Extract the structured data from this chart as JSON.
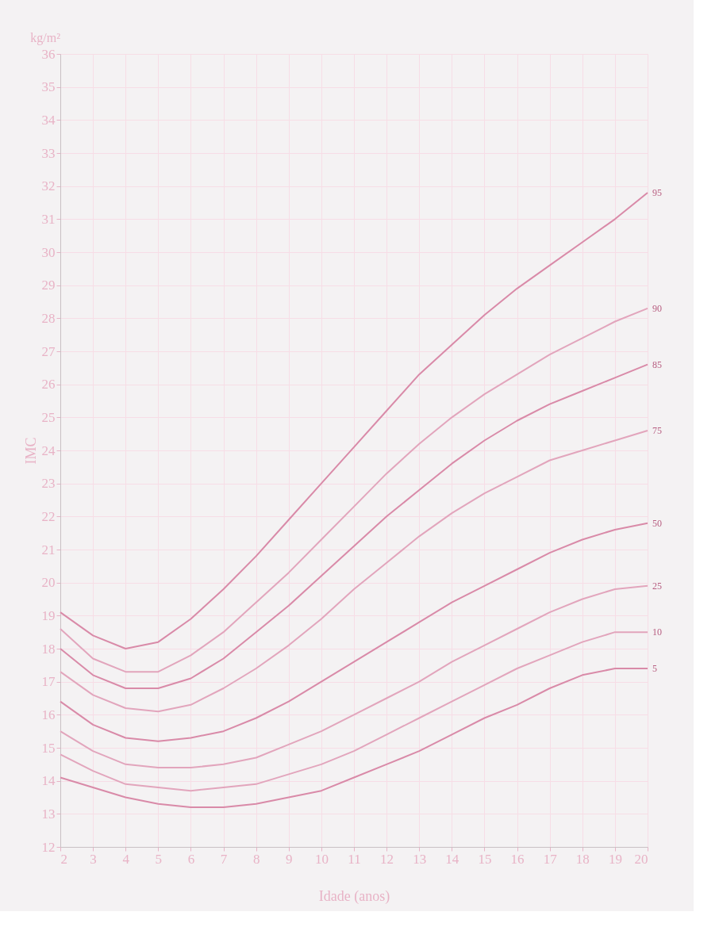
{
  "chart_data": {
    "type": "line",
    "xlabel": "Idade (anos)",
    "ylabel": "IMC",
    "annotations": [
      "kg/m²"
    ],
    "x": [
      2,
      3,
      4,
      5,
      6,
      7,
      8,
      9,
      10,
      11,
      12,
      13,
      14,
      15,
      16,
      17,
      18,
      19,
      20
    ],
    "series": [
      {
        "name": "95",
        "color": "#d98aa8",
        "values": [
          19.1,
          18.4,
          18.0,
          18.2,
          18.9,
          19.8,
          20.8,
          21.9,
          23.0,
          24.1,
          25.2,
          26.3,
          27.2,
          28.1,
          28.9,
          29.6,
          30.3,
          31.0,
          31.8
        ]
      },
      {
        "name": "90",
        "color": "#e2a5bc",
        "values": [
          18.6,
          17.7,
          17.3,
          17.3,
          17.8,
          18.5,
          19.4,
          20.3,
          21.3,
          22.3,
          23.3,
          24.2,
          25.0,
          25.7,
          26.3,
          26.9,
          27.4,
          27.9,
          28.3
        ]
      },
      {
        "name": "85",
        "color": "#d98aa8",
        "values": [
          18.0,
          17.2,
          16.8,
          16.8,
          17.1,
          17.7,
          18.5,
          19.3,
          20.2,
          21.1,
          22.0,
          22.8,
          23.6,
          24.3,
          24.9,
          25.4,
          25.8,
          26.2,
          26.6
        ]
      },
      {
        "name": "75",
        "color": "#e2a5bc",
        "values": [
          17.3,
          16.6,
          16.2,
          16.1,
          16.3,
          16.8,
          17.4,
          18.1,
          18.9,
          19.8,
          20.6,
          21.4,
          22.1,
          22.7,
          23.2,
          23.7,
          24.0,
          24.3,
          24.6
        ]
      },
      {
        "name": "50",
        "color": "#d98aa8",
        "values": [
          16.4,
          15.7,
          15.3,
          15.2,
          15.3,
          15.5,
          15.9,
          16.4,
          17.0,
          17.6,
          18.2,
          18.8,
          19.4,
          19.9,
          20.4,
          20.9,
          21.3,
          21.6,
          21.8
        ]
      },
      {
        "name": "25",
        "color": "#e2a5bc",
        "values": [
          15.5,
          14.9,
          14.5,
          14.4,
          14.4,
          14.5,
          14.7,
          15.1,
          15.5,
          16.0,
          16.5,
          17.0,
          17.6,
          18.1,
          18.6,
          19.1,
          19.5,
          19.8,
          19.9
        ]
      },
      {
        "name": "10",
        "color": "#e2a5bc",
        "values": [
          14.8,
          14.3,
          13.9,
          13.8,
          13.7,
          13.8,
          13.9,
          14.2,
          14.5,
          14.9,
          15.4,
          15.9,
          16.4,
          16.9,
          17.4,
          17.8,
          18.2,
          18.5,
          18.5
        ]
      },
      {
        "name": "5",
        "color": "#d98aa8",
        "values": [
          14.1,
          13.8,
          13.5,
          13.3,
          13.2,
          13.2,
          13.3,
          13.5,
          13.7,
          14.1,
          14.5,
          14.9,
          15.4,
          15.9,
          16.3,
          16.8,
          17.2,
          17.4,
          17.4
        ]
      }
    ],
    "xlim": [
      2,
      20
    ],
    "xticks": [
      2,
      3,
      4,
      5,
      6,
      7,
      8,
      9,
      10,
      11,
      12,
      13,
      14,
      15,
      16,
      17,
      18,
      19,
      20
    ],
    "ylim": [
      12,
      36
    ],
    "yticks": [
      12,
      13,
      14,
      15,
      16,
      17,
      18,
      19,
      20,
      21,
      22,
      23,
      24,
      25,
      26,
      27,
      28,
      29,
      30,
      31,
      32,
      33,
      34,
      35,
      36
    ],
    "grid": true,
    "legend": false,
    "marker": "none",
    "line_style": "solid"
  }
}
